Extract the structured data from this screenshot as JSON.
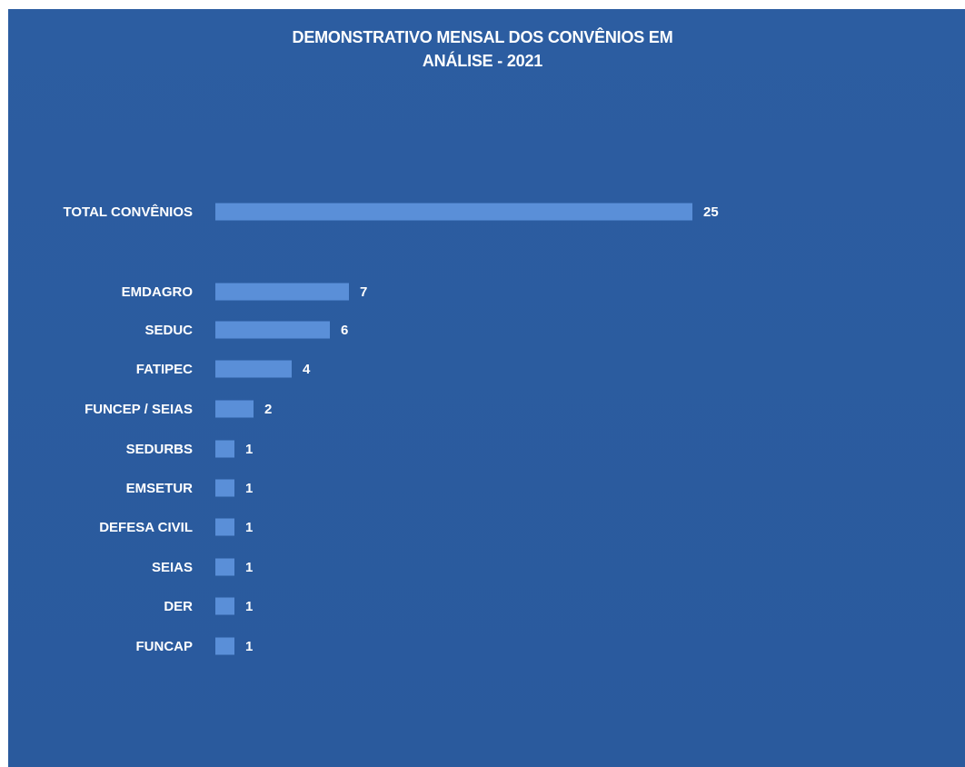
{
  "chart_data": {
    "type": "bar",
    "orientation": "horizontal",
    "title_lines": [
      "DEMONSTRATIVO MENSAL DOS CONVÊNIOS EM",
      "ANÁLISE - 2021"
    ],
    "categories": [
      "TOTAL CONVÊNIOS",
      "EMDAGRO",
      "SEDUC",
      "FATIPEC",
      "FUNCEP / SEIAS",
      "SEDURBS",
      "EMSETUR",
      "DEFESA CIVIL",
      "SEIAS",
      "DER",
      "FUNCAP"
    ],
    "values": [
      25,
      7,
      6,
      4,
      2,
      1,
      1,
      1,
      1,
      1,
      1
    ],
    "data_labels": [
      "25",
      "7",
      "6",
      "4",
      "2",
      "1",
      "1",
      "1",
      "1",
      "1",
      "1"
    ],
    "xlabel": "",
    "ylabel": "",
    "grid": false,
    "legend": "none",
    "colors": {
      "background": "#2b5b9f",
      "bar": "#5a8fd8",
      "text": "#ffffff"
    }
  }
}
